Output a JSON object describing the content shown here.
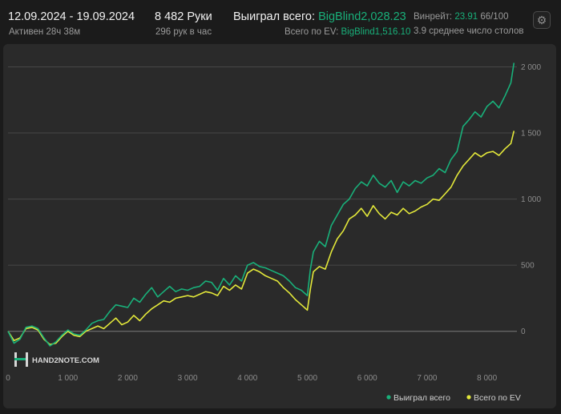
{
  "header": {
    "date_range": "12.09.2024 - 19.09.2024",
    "active_time": "Активен 28ч 38м",
    "hands": "8 482 Руки",
    "hands_per_hour": "296 рук в час",
    "won_label": "Выиграл всего:",
    "won_value": "BigBlind2,028.23",
    "ev_label": "Всего по EV:",
    "ev_value": "BigBlind1,516.10",
    "winrate_label": "Винрейт:",
    "winrate_value": "23.91",
    "winrate_suffix": "66/100",
    "avg_tables": "3.9 среднее число столов"
  },
  "logo_text": "HAND2NOTE.COM",
  "colors": {
    "won": "#19b07a",
    "ev": "#e3e83a",
    "accent": "#19b07a"
  },
  "chart_data": {
    "type": "line",
    "title": "",
    "xlabel": "",
    "ylabel": "",
    "xlim": [
      0,
      8500
    ],
    "ylim": [
      -250,
      2130
    ],
    "x_ticks": [
      0,
      1000,
      2000,
      3000,
      4000,
      5000,
      6000,
      7000,
      8000
    ],
    "x_tick_labels": [
      "0",
      "1 000",
      "2 000",
      "3 000",
      "4 000",
      "5 000",
      "6 000",
      "7 000",
      "8 000"
    ],
    "y_ticks": [
      0,
      500,
      1000,
      1500,
      2000
    ],
    "y_tick_labels": [
      "0",
      "500",
      "1 000",
      "1 500",
      "2 000"
    ],
    "grid": "horizontal",
    "legend_position": "bottom-right",
    "series": [
      {
        "name": "Выиграл всего",
        "x": [
          0,
          100,
          200,
          300,
          400,
          500,
          600,
          700,
          800,
          900,
          1000,
          1100,
          1200,
          1300,
          1400,
          1500,
          1600,
          1700,
          1800,
          1900,
          2000,
          2100,
          2200,
          2300,
          2400,
          2500,
          2600,
          2700,
          2800,
          2900,
          3000,
          3100,
          3200,
          3300,
          3400,
          3500,
          3600,
          3700,
          3800,
          3900,
          4000,
          4100,
          4200,
          4300,
          4400,
          4500,
          4600,
          4700,
          4800,
          4900,
          5000,
          5050,
          5100,
          5200,
          5300,
          5400,
          5500,
          5600,
          5700,
          5800,
          5900,
          6000,
          6100,
          6200,
          6300,
          6400,
          6500,
          6600,
          6700,
          6800,
          6900,
          7000,
          7100,
          7200,
          7300,
          7400,
          7500,
          7600,
          7700,
          7800,
          7900,
          8000,
          8100,
          8200,
          8300,
          8400,
          8450
        ],
        "values": [
          0,
          -90,
          -60,
          30,
          40,
          20,
          -50,
          -110,
          -80,
          -30,
          10,
          -20,
          -30,
          10,
          60,
          80,
          90,
          150,
          200,
          190,
          180,
          250,
          220,
          280,
          330,
          260,
          300,
          340,
          300,
          320,
          310,
          330,
          340,
          380,
          370,
          310,
          400,
          350,
          420,
          380,
          500,
          520,
          490,
          480,
          460,
          440,
          420,
          380,
          330,
          310,
          270,
          470,
          600,
          680,
          640,
          800,
          880,
          960,
          1000,
          1080,
          1130,
          1100,
          1180,
          1120,
          1090,
          1140,
          1050,
          1130,
          1100,
          1140,
          1120,
          1160,
          1180,
          1230,
          1200,
          1300,
          1360,
          1550,
          1600,
          1660,
          1620,
          1700,
          1740,
          1690,
          1780,
          1880,
          2030
        ]
      },
      {
        "name": "Всего по EV",
        "x": [
          0,
          100,
          200,
          300,
          400,
          500,
          600,
          700,
          800,
          900,
          1000,
          1100,
          1200,
          1300,
          1400,
          1500,
          1600,
          1700,
          1800,
          1900,
          2000,
          2100,
          2200,
          2300,
          2400,
          2500,
          2600,
          2700,
          2800,
          2900,
          3000,
          3100,
          3200,
          3300,
          3400,
          3500,
          3600,
          3700,
          3800,
          3900,
          4000,
          4100,
          4200,
          4300,
          4400,
          4500,
          4600,
          4700,
          4800,
          4900,
          5000,
          5050,
          5100,
          5200,
          5300,
          5400,
          5500,
          5600,
          5700,
          5800,
          5900,
          6000,
          6100,
          6200,
          6300,
          6400,
          6500,
          6600,
          6700,
          6800,
          6900,
          7000,
          7100,
          7200,
          7300,
          7400,
          7500,
          7600,
          7700,
          7800,
          7900,
          8000,
          8100,
          8200,
          8300,
          8400,
          8450
        ],
        "values": [
          0,
          -70,
          -50,
          20,
          30,
          10,
          -60,
          -100,
          -90,
          -40,
          0,
          -30,
          -40,
          0,
          20,
          40,
          20,
          60,
          100,
          50,
          70,
          120,
          80,
          130,
          170,
          200,
          230,
          220,
          250,
          260,
          270,
          260,
          280,
          300,
          290,
          270,
          340,
          310,
          350,
          320,
          440,
          470,
          450,
          420,
          400,
          380,
          330,
          290,
          240,
          200,
          160,
          320,
          450,
          490,
          470,
          600,
          700,
          760,
          850,
          880,
          930,
          870,
          950,
          890,
          850,
          900,
          880,
          930,
          890,
          910,
          940,
          960,
          1000,
          990,
          1040,
          1090,
          1180,
          1250,
          1300,
          1350,
          1320,
          1350,
          1360,
          1330,
          1380,
          1420,
          1516
        ]
      }
    ]
  }
}
